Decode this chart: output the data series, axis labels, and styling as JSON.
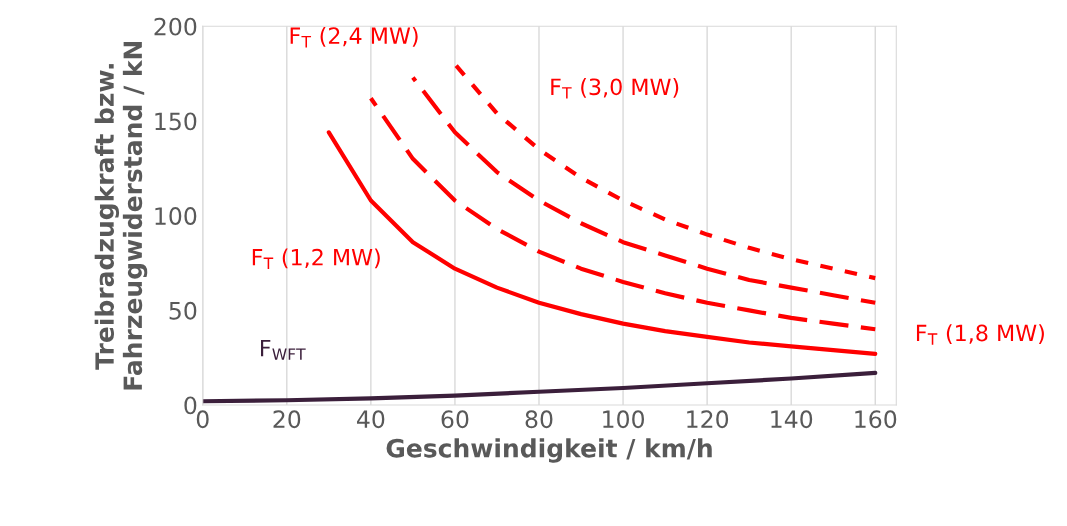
{
  "chart_data": {
    "type": "line",
    "xlabel": "Geschwindigkeit / km/h",
    "ylabel": "Treibradzugkraft bzw.\nFahrzeugwiderstand / kN",
    "xlim": [
      0,
      165
    ],
    "xticks": [
      0,
      20,
      40,
      60,
      80,
      100,
      120,
      140,
      160
    ],
    "ylim": [
      0,
      200
    ],
    "yticks": [
      0,
      50,
      100,
      150,
      200
    ],
    "grid": "x",
    "legend": false,
    "series": [
      {
        "name": "F$_{T}$ (1,2 MW)",
        "color": "#ff0000",
        "line_style": "solid",
        "x": [
          30,
          40,
          50,
          60,
          70,
          80,
          90,
          100,
          110,
          120,
          130,
          140,
          150,
          160
        ],
        "values": [
          144,
          108,
          86,
          72,
          62,
          54,
          48,
          43,
          39,
          36,
          33,
          31,
          29,
          27
        ]
      },
      {
        "name": "F$_{T}$ (1,8 MW)",
        "color": "#ff0000",
        "line_style": "dashed",
        "x": [
          40,
          50,
          60,
          70,
          80,
          90,
          100,
          110,
          120,
          130,
          140,
          150,
          160
        ],
        "values": [
          162,
          130,
          108,
          93,
          81,
          72,
          65,
          59,
          54,
          50,
          46,
          43,
          40
        ]
      },
      {
        "name": "F$_{T}$ (2,4 MW)",
        "color": "#ff0000",
        "line_style": "dashed",
        "x": [
          50,
          60,
          70,
          80,
          90,
          100,
          110,
          120,
          130,
          140,
          150,
          160
        ],
        "values": [
          173,
          144,
          123,
          108,
          96,
          86,
          79,
          72,
          66,
          62,
          58,
          54
        ]
      },
      {
        "name": "F$_{T}$ (3,0 MW)",
        "color": "#ff0000",
        "line_style": "dotted",
        "x": [
          60,
          70,
          80,
          90,
          100,
          110,
          120,
          130,
          140,
          150,
          160
        ],
        "values": [
          180,
          154,
          135,
          120,
          108,
          98,
          90,
          83,
          77,
          72,
          67
        ]
      },
      {
        "name": "F$_{WFT}$",
        "color": "#3b1f3b",
        "line_style": "solid",
        "x": [
          0,
          20,
          40,
          60,
          80,
          100,
          120,
          140,
          160
        ],
        "values": [
          2,
          2.5,
          3.5,
          5,
          7,
          9,
          11.5,
          14,
          17
        ]
      }
    ]
  }
}
